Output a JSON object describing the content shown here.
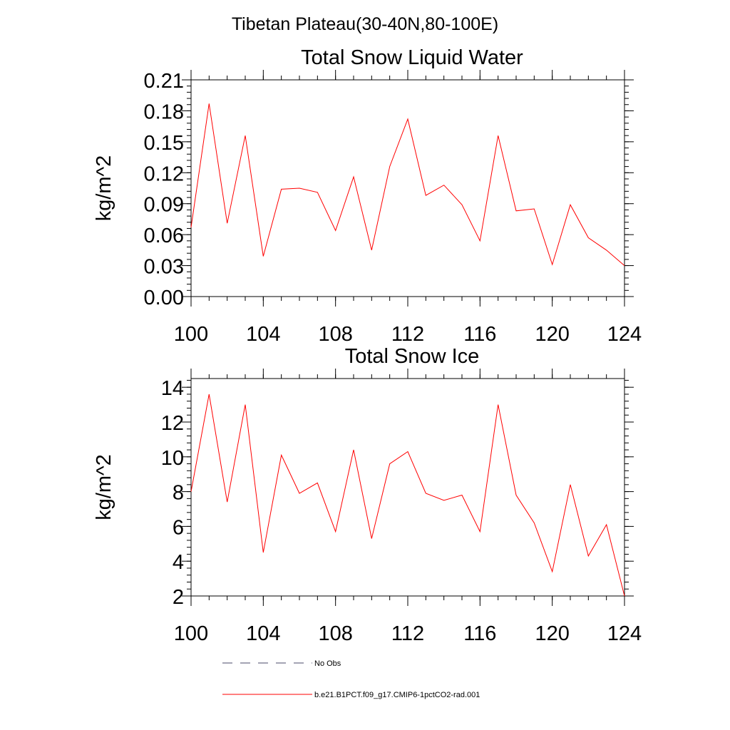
{
  "figure": {
    "title": "Tibetan Plateau(30-40N,80-100E)"
  },
  "chart_data": [
    {
      "type": "line",
      "title": "Total Snow Liquid Water",
      "xlabel": "",
      "ylabel": "kg/m^2",
      "xlim": [
        100,
        124
      ],
      "ylim": [
        0,
        0.21
      ],
      "x_ticks": [
        100,
        104,
        108,
        112,
        116,
        120,
        124
      ],
      "x_tick_labels": [
        "100",
        "104",
        "108",
        "112",
        "116",
        "120",
        "124"
      ],
      "y_ticks": [
        0,
        0.03,
        0.06,
        0.09,
        0.12,
        0.15,
        0.18,
        0.21
      ],
      "y_tick_labels": [
        "0.00",
        "0.03",
        "0.06",
        "0.09",
        "0.12",
        "0.15",
        "0.18",
        "0.21"
      ],
      "x_minor_step": 1,
      "y_minor_step": 0.006,
      "grid": false,
      "series": [
        {
          "name": "b.e21.B1PCT.f09_g17.CMIP6-1pctCO2-rad.001",
          "color": "#ff0000",
          "x": [
            100,
            101,
            102,
            103,
            104,
            105,
            106,
            107,
            108,
            109,
            110,
            111,
            112,
            113,
            114,
            115,
            116,
            117,
            118,
            119,
            120,
            121,
            122,
            123,
            124
          ],
          "values": [
            0.067,
            0.187,
            0.071,
            0.156,
            0.039,
            0.104,
            0.105,
            0.101,
            0.064,
            0.116,
            0.045,
            0.126,
            0.172,
            0.098,
            0.108,
            0.089,
            0.054,
            0.156,
            0.083,
            0.085,
            0.031,
            0.089,
            0.057,
            0.045,
            0.03
          ]
        }
      ]
    },
    {
      "type": "line",
      "title": "Total Snow Ice",
      "xlabel": "",
      "ylabel": "kg/m^2",
      "xlim": [
        100,
        124
      ],
      "ylim": [
        2,
        14.5
      ],
      "x_ticks": [
        100,
        104,
        108,
        112,
        116,
        120,
        124
      ],
      "x_tick_labels": [
        "100",
        "104",
        "108",
        "112",
        "116",
        "120",
        "124"
      ],
      "y_ticks": [
        2,
        4,
        6,
        8,
        10,
        12,
        14
      ],
      "y_tick_labels": [
        "2",
        "4",
        "6",
        "8",
        "10",
        "12",
        "14"
      ],
      "x_minor_step": 1,
      "y_minor_step": 0.4,
      "grid": false,
      "series": [
        {
          "name": "b.e21.B1PCT.f09_g17.CMIP6-1pctCO2-rad.001",
          "color": "#ff0000",
          "x": [
            100,
            101,
            102,
            103,
            104,
            105,
            106,
            107,
            108,
            109,
            110,
            111,
            112,
            113,
            114,
            115,
            116,
            117,
            118,
            119,
            120,
            121,
            122,
            123,
            124
          ],
          "values": [
            8.0,
            13.6,
            7.4,
            13.0,
            4.5,
            10.1,
            7.9,
            8.5,
            5.7,
            10.4,
            5.3,
            9.6,
            10.3,
            7.9,
            7.5,
            7.8,
            5.7,
            13.0,
            7.8,
            6.2,
            3.4,
            8.4,
            4.3,
            6.1,
            2.0
          ]
        }
      ]
    }
  ],
  "legend": {
    "position": "bottom-center",
    "entries": [
      {
        "label": "No Obs",
        "color": "#4a4a6a",
        "dash": true
      },
      {
        "label": "b.e21.B1PCT.f09_g17.CMIP6-1pctCO2-rad.001",
        "color": "#ff0000",
        "dash": false
      }
    ]
  }
}
